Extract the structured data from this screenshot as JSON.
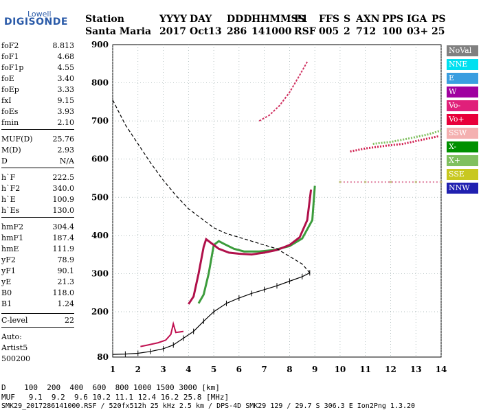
{
  "logo": {
    "top": "Lowell",
    "main": "DIGISONDE"
  },
  "header": {
    "labels": [
      "Station",
      "YYYY",
      "DAY",
      "DDD",
      "HHMMSS",
      "P1",
      "FFS",
      "S",
      "AXN",
      "PPS",
      "IGA",
      "PS"
    ],
    "values": [
      "Santa Maria",
      "2017",
      "Oct13",
      "286",
      "141000",
      "RSF",
      "005",
      "2",
      "712",
      "100",
      "03+",
      "25"
    ]
  },
  "params": [
    {
      "name": "foF2",
      "value": "8.813"
    },
    {
      "name": "foF1",
      "value": "4.68"
    },
    {
      "name": "foF1p",
      "value": "4.55"
    },
    {
      "name": "foE",
      "value": "3.40"
    },
    {
      "name": "foEp",
      "value": "3.33"
    },
    {
      "name": "fxI",
      "value": "9.15"
    },
    {
      "name": "foEs",
      "value": "3.93"
    },
    {
      "name": "fmin",
      "value": "2.10"
    },
    {
      "name": "MUF(D)",
      "value": "25.76"
    },
    {
      "name": "M(D)",
      "value": "2.93"
    },
    {
      "name": "D",
      "value": "N/A"
    },
    {
      "name": "h`F",
      "value": "222.5"
    },
    {
      "name": "h`F2",
      "value": "340.0"
    },
    {
      "name": "h`E",
      "value": "100.9"
    },
    {
      "name": "h`Es",
      "value": "130.0"
    },
    {
      "name": "hmF2",
      "value": "304.4"
    },
    {
      "name": "hmF1",
      "value": "187.4"
    },
    {
      "name": "hmE",
      "value": "111.9"
    },
    {
      "name": "yF2",
      "value": "78.9"
    },
    {
      "name": "yF1",
      "value": "90.1"
    },
    {
      "name": "yE",
      "value": "21.3"
    },
    {
      "name": "B0",
      "value": "118.0"
    },
    {
      "name": "B1",
      "value": "1.24"
    },
    {
      "name": "C-level",
      "value": "22"
    }
  ],
  "auto": {
    "label": "Auto:",
    "artist": "Artist5",
    "code": "500200"
  },
  "legend": [
    {
      "label": "NoVal",
      "color": "#808080"
    },
    {
      "label": "NNE",
      "color": "#00e0f0"
    },
    {
      "label": "E",
      "color": "#3a9ee0"
    },
    {
      "label": "W",
      "color": "#a000a0"
    },
    {
      "label": "Vo-",
      "color": "#e0207a"
    },
    {
      "label": "Vo+",
      "color": "#e8003a"
    },
    {
      "label": "SSW",
      "color": "#f4b0b0"
    },
    {
      "label": "X-",
      "color": "#009000"
    },
    {
      "label": "X+",
      "color": "#80c060"
    },
    {
      "label": "SSE",
      "color": "#c8c820"
    },
    {
      "label": "NNW",
      "color": "#2020b0"
    }
  ],
  "chart_data": {
    "type": "scatter",
    "xlim": [
      1,
      14
    ],
    "ylim": [
      80,
      900
    ],
    "xticks": [
      "1",
      "2",
      "3",
      "4",
      "5",
      "6",
      "7",
      "8",
      "9",
      "10",
      "11",
      "12",
      "13",
      "14"
    ],
    "yticks": [
      "80",
      "200",
      "300",
      "400",
      "500",
      "600",
      "700",
      "800",
      "900"
    ],
    "profile": [
      [
        1.0,
        87
      ],
      [
        1.5,
        88
      ],
      [
        2.0,
        90
      ],
      [
        2.5,
        95
      ],
      [
        3.0,
        102
      ],
      [
        3.4,
        112
      ],
      [
        3.8,
        130
      ],
      [
        4.2,
        148
      ],
      [
        4.6,
        175
      ],
      [
        5.0,
        200
      ],
      [
        5.5,
        222
      ],
      [
        6.0,
        236
      ],
      [
        6.5,
        248
      ],
      [
        7.0,
        258
      ],
      [
        7.5,
        268
      ],
      [
        8.0,
        280
      ],
      [
        8.5,
        292
      ],
      [
        8.8,
        302
      ]
    ],
    "profile_dashed": [
      [
        1.0,
        755
      ],
      [
        1.5,
        690
      ],
      [
        2.0,
        640
      ],
      [
        2.5,
        590
      ],
      [
        3.0,
        545
      ],
      [
        3.5,
        505
      ],
      [
        4.0,
        470
      ],
      [
        4.5,
        445
      ],
      [
        5.0,
        420
      ],
      [
        5.5,
        405
      ],
      [
        6.0,
        395
      ],
      [
        6.5,
        385
      ],
      [
        7.0,
        375
      ],
      [
        7.5,
        365
      ],
      [
        8.0,
        345
      ],
      [
        8.5,
        325
      ],
      [
        8.8,
        302
      ]
    ],
    "trace_o": [
      [
        4.0,
        220
      ],
      [
        4.2,
        240
      ],
      [
        4.4,
        300
      ],
      [
        4.6,
        370
      ],
      [
        4.7,
        390
      ],
      [
        4.9,
        380
      ],
      [
        5.2,
        365
      ],
      [
        5.6,
        355
      ],
      [
        6.0,
        352
      ],
      [
        6.5,
        350
      ],
      [
        7.0,
        355
      ],
      [
        7.5,
        362
      ],
      [
        8.0,
        375
      ],
      [
        8.4,
        395
      ],
      [
        8.7,
        440
      ],
      [
        8.85,
        520
      ]
    ],
    "trace_x": [
      [
        4.4,
        222
      ],
      [
        4.6,
        245
      ],
      [
        4.8,
        300
      ],
      [
        5.0,
        375
      ],
      [
        5.2,
        385
      ],
      [
        5.4,
        378
      ],
      [
        5.8,
        365
      ],
      [
        6.2,
        358
      ],
      [
        6.8,
        358
      ],
      [
        7.4,
        362
      ],
      [
        8.0,
        372
      ],
      [
        8.5,
        392
      ],
      [
        8.9,
        440
      ],
      [
        9.0,
        530
      ]
    ],
    "trace_e": [
      [
        2.1,
        108
      ],
      [
        2.4,
        112
      ],
      [
        2.8,
        118
      ],
      [
        3.1,
        125
      ],
      [
        3.3,
        140
      ],
      [
        3.4,
        168
      ],
      [
        3.5,
        145
      ],
      [
        3.8,
        148
      ]
    ],
    "trace_o2": [
      [
        6.8,
        700
      ],
      [
        7.2,
        715
      ],
      [
        7.6,
        740
      ],
      [
        8.0,
        775
      ],
      [
        8.4,
        820
      ],
      [
        8.7,
        855
      ]
    ],
    "trace_o3": [
      [
        10.4,
        620
      ],
      [
        11.0,
        628
      ],
      [
        11.8,
        635
      ],
      [
        12.5,
        640
      ],
      [
        13.2,
        650
      ],
      [
        13.9,
        660
      ]
    ],
    "trace_x3": [
      [
        11.3,
        640
      ],
      [
        12.0,
        645
      ],
      [
        12.8,
        655
      ],
      [
        13.5,
        665
      ],
      [
        14.0,
        675
      ]
    ],
    "trace_low": [
      [
        10.0,
        540
      ],
      [
        11.0,
        540
      ],
      [
        12.0,
        540
      ],
      [
        13.0,
        540
      ],
      [
        14.0,
        540
      ]
    ]
  },
  "bottom": {
    "d_row": "D    100  200  400  600  800 1000 1500 3000 [km]",
    "muf_row": "MUF   9.1  9.2  9.6 10.2 11.1 12.4 16.2 25.8 [MHz]",
    "footer": "SMK29_2017286141000.RSF / 520fx512h 25 kHz 2.5 km / DPS-4D SMK29 129 / 29.7 S 306.3 E Ion2Png 1.3.20"
  }
}
